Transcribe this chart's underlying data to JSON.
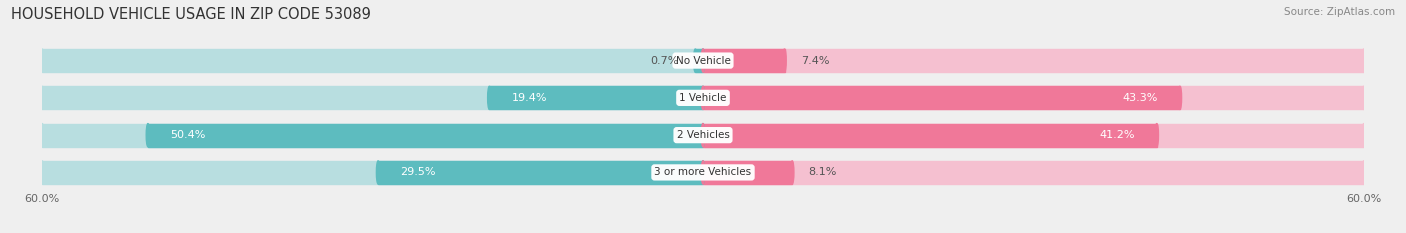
{
  "title": "HOUSEHOLD VEHICLE USAGE IN ZIP CODE 53089",
  "source": "Source: ZipAtlas.com",
  "categories": [
    "No Vehicle",
    "1 Vehicle",
    "2 Vehicles",
    "3 or more Vehicles"
  ],
  "owner_values": [
    0.7,
    19.4,
    50.4,
    29.5
  ],
  "renter_values": [
    7.4,
    43.3,
    41.2,
    8.1
  ],
  "owner_color": "#5dbcbf",
  "renter_color": "#f07899",
  "owner_color_light": "#b8dee0",
  "renter_color_light": "#f5c0d0",
  "axis_max": 60.0,
  "bg_color": "#efefef",
  "row_bg_color": "#e2e2e2",
  "title_fontsize": 10.5,
  "source_fontsize": 7.5,
  "label_fontsize": 8,
  "axis_fontsize": 8,
  "category_fontsize": 7.5
}
